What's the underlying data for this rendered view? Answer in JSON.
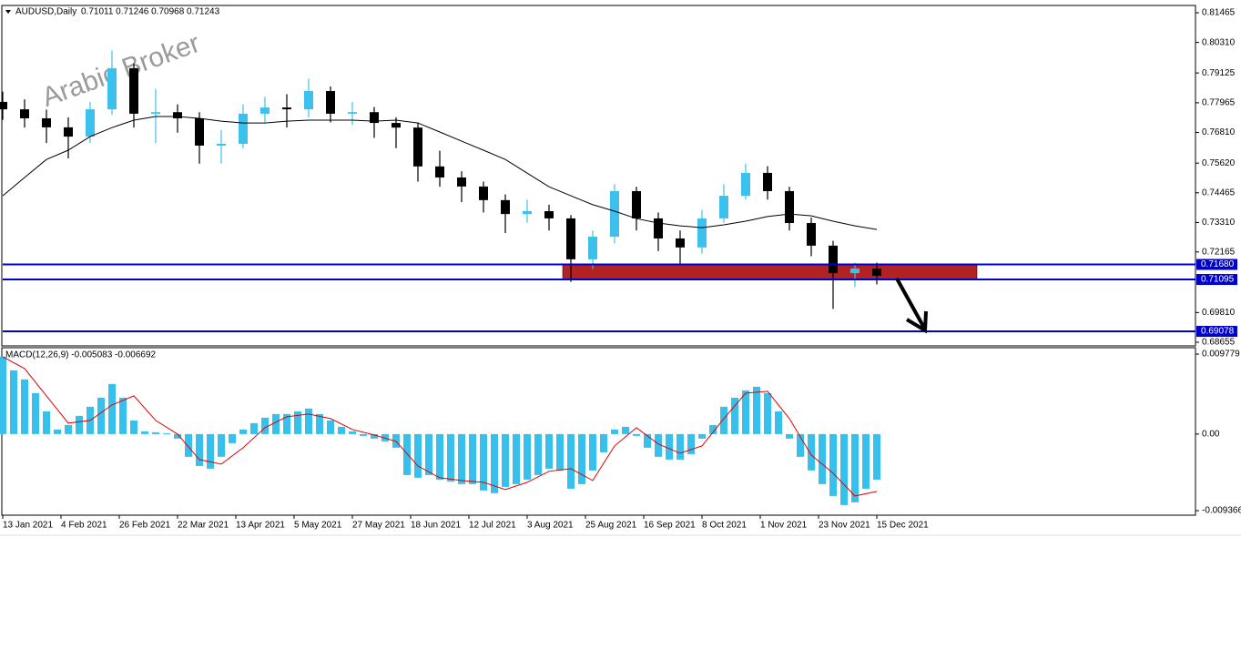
{
  "chart_data": [
    {
      "type": "candlestick",
      "title": "AUDUSD,Daily",
      "ohlc_text": "0.71011 0.71246 0.70968 0.71243",
      "watermark": "Arabic Broker",
      "xlim": [
        0,
        327.5
      ],
      "xticks": [
        {
          "value": 0,
          "label": "13 Jan 2021"
        },
        {
          "value": 16,
          "label": "4 Feb 2021"
        },
        {
          "value": 32,
          "label": "26 Feb 2021"
        },
        {
          "value": 48,
          "label": "22 Mar 2021"
        },
        {
          "value": 64,
          "label": "13 Apr 2021"
        },
        {
          "value": 80,
          "label": "5 May 2021"
        },
        {
          "value": 96,
          "label": "27 May 2021"
        },
        {
          "value": 112,
          "label": "18 Jun 2021"
        },
        {
          "value": 128,
          "label": "12 Jul 2021"
        },
        {
          "value": 144,
          "label": "3 Aug 2021"
        },
        {
          "value": 160,
          "label": "25 Aug 2021"
        },
        {
          "value": 176,
          "label": "16 Sep 2021"
        },
        {
          "value": 192,
          "label": "8 Oct 2021"
        },
        {
          "value": 208,
          "label": "1 Nov 2021"
        },
        {
          "value": 224,
          "label": "23 Nov 2021"
        },
        {
          "value": 240,
          "label": "15 Dec 2021"
        }
      ],
      "ylim": [
        0.68513,
        0.81748
      ],
      "yticks": [
        0.81465,
        {
          "value": 0.8031,
          "label": "0.80310"
        },
        0.79125,
        0.77965,
        {
          "value": 0.7681,
          "label": "0.76810"
        },
        {
          "value": 0.7562,
          "label": "0.75620"
        },
        0.74465,
        {
          "value": 0.7331,
          "label": "0.73310"
        },
        0.72165,
        {
          "value": 0.6981,
          "label": "0.69810"
        },
        0.68655
      ],
      "x": [
        0,
        6,
        12,
        18,
        24,
        30,
        36,
        42,
        48,
        54,
        60,
        66,
        72,
        78,
        84,
        90,
        96,
        102,
        108,
        114,
        120,
        126,
        132,
        138,
        144,
        150,
        156,
        162,
        168,
        174,
        180,
        186,
        192,
        198,
        204,
        210,
        216,
        222,
        228,
        234,
        240
      ],
      "open": [
        0.78,
        0.7771,
        0.7736,
        0.7701,
        0.7665,
        0.7771,
        0.7931,
        0.7754,
        0.776,
        0.7736,
        0.763,
        0.7637,
        0.7754,
        0.7778,
        0.7771,
        0.7842,
        0.7754,
        0.776,
        0.7718,
        0.77,
        0.7549,
        0.7506,
        0.7471,
        0.7418,
        0.7364,
        0.7375,
        0.7347,
        0.7188,
        0.7276,
        0.7453,
        0.7347,
        0.7269,
        0.7234,
        0.7347,
        0.7435,
        0.7524,
        0.7453,
        0.7329,
        0.7241,
        0.7134,
        0.7152
      ],
      "high": [
        0.784,
        0.781,
        0.777,
        0.774,
        0.78,
        0.8,
        0.795,
        0.785,
        0.779,
        0.776,
        0.769,
        0.779,
        0.782,
        0.783,
        0.789,
        0.786,
        0.78,
        0.778,
        0.774,
        0.772,
        0.761,
        0.753,
        0.749,
        0.744,
        0.742,
        0.74,
        0.736,
        0.73,
        0.748,
        0.747,
        0.737,
        0.73,
        0.738,
        0.748,
        0.756,
        0.755,
        0.747,
        0.735,
        0.726,
        0.7175,
        0.7175
      ],
      "low": [
        0.773,
        0.77,
        0.764,
        0.758,
        0.764,
        0.775,
        0.77,
        0.764,
        0.768,
        0.756,
        0.756,
        0.762,
        0.772,
        0.77,
        0.774,
        0.772,
        0.771,
        0.766,
        0.762,
        0.749,
        0.747,
        0.741,
        0.737,
        0.729,
        0.733,
        0.73,
        0.71,
        0.715,
        0.725,
        0.73,
        0.722,
        0.717,
        0.721,
        0.733,
        0.742,
        0.742,
        0.73,
        0.72,
        0.6995,
        0.708,
        0.709
      ],
      "close": [
        0.7771,
        0.7736,
        0.7701,
        0.7665,
        0.7771,
        0.7931,
        0.7754,
        0.776,
        0.7736,
        0.763,
        0.7637,
        0.7754,
        0.7778,
        0.7771,
        0.7842,
        0.7754,
        0.776,
        0.7718,
        0.77,
        0.7549,
        0.7506,
        0.7471,
        0.7418,
        0.7364,
        0.7375,
        0.7347,
        0.7188,
        0.7276,
        0.7453,
        0.7347,
        0.7269,
        0.7234,
        0.7347,
        0.7435,
        0.7524,
        0.7453,
        0.7329,
        0.7241,
        0.7134,
        0.7152,
        0.7124
      ],
      "up_color": "#3cc0ec",
      "down_color": "#000000",
      "ma": [
        0.7435,
        0.7506,
        0.7576,
        0.7612,
        0.7665,
        0.77,
        0.7729,
        0.7743,
        0.7743,
        0.7736,
        0.7725,
        0.7718,
        0.7718,
        0.7725,
        0.7729,
        0.7729,
        0.7729,
        0.7725,
        0.7729,
        0.7718,
        0.7683,
        0.7647,
        0.7612,
        0.7576,
        0.7523,
        0.747,
        0.7435,
        0.74,
        0.7375,
        0.7346,
        0.7329,
        0.7318,
        0.7311,
        0.7322,
        0.7336,
        0.7354,
        0.7364,
        0.7357,
        0.7336,
        0.7318,
        0.7304
      ],
      "ma_color": "#000000",
      "levels": [
        {
          "value": 0.7168,
          "label": "0.71680"
        },
        {
          "value": 0.71095,
          "label": "0.71095"
        },
        {
          "value": 0.69078,
          "label": "0.69078"
        }
      ],
      "level_color": "#0000cc",
      "zone": {
        "xlim": [
          153.75,
          267.5
        ],
        "ylim": [
          0.711,
          0.7168
        ],
        "color": "#b22222"
      }
    },
    {
      "type": "macd",
      "title": "MACD(12,26,9) -0.005083 -0.006692",
      "ylim": [
        -0.00992,
        0.01045
      ],
      "yticks": [
        0.009779,
        {
          "value": 0,
          "label": "0.00"
        },
        -0.009366
      ],
      "x": [
        0,
        3,
        6,
        9,
        12,
        15,
        18,
        21,
        24,
        27,
        30,
        33,
        36,
        39,
        42,
        45,
        48,
        51,
        54,
        57,
        60,
        63,
        66,
        69,
        72,
        75,
        78,
        81,
        84,
        87,
        90,
        93,
        96,
        99,
        102,
        105,
        108,
        111,
        114,
        117,
        120,
        123,
        126,
        129,
        132,
        135,
        138,
        141,
        144,
        147,
        150,
        153,
        156,
        159,
        162,
        165,
        168,
        171,
        174,
        177,
        180,
        183,
        186,
        189,
        192,
        195,
        198,
        201,
        204,
        207,
        210,
        213,
        216,
        219,
        222,
        225,
        228,
        231,
        234,
        237,
        240
      ],
      "histogram": [
        0.00946,
        0.00779,
        0.00668,
        0.00501,
        0.00278,
        0.00056,
        0.00111,
        0.00223,
        0.00334,
        0.00445,
        0.00612,
        0.00445,
        0.00167,
        0.00033,
        0.00022,
        0.00011,
        -0.00056,
        -0.00278,
        -0.0039,
        -0.00423,
        -0.00278,
        -0.00111,
        0.00056,
        0.00134,
        0.002,
        0.00245,
        0.00245,
        0.00278,
        0.00312,
        0.00245,
        0.00167,
        0.00089,
        0.00033,
        -0.00022,
        -0.00056,
        -0.00089,
        -0.00167,
        -0.00501,
        -0.00534,
        -0.00501,
        -0.00557,
        -0.00579,
        -0.00612,
        -0.00612,
        -0.0069,
        -0.00723,
        -0.00646,
        -0.00612,
        -0.00557,
        -0.00501,
        -0.00423,
        -0.00445,
        -0.00668,
        -0.00612,
        -0.00445,
        -0.00223,
        0.00056,
        0.00089,
        -0.00022,
        -0.00167,
        -0.00278,
        -0.00312,
        -0.00312,
        -0.00245,
        -0.00056,
        0.00111,
        0.00334,
        0.00445,
        0.00534,
        0.00579,
        0.00501,
        0.00278,
        -0.00056,
        -0.00278,
        -0.00445,
        -0.00612,
        -0.00757,
        -0.00868,
        -0.00835,
        -0.00668,
        -0.00557
      ],
      "histogram_color": "#38c0ec",
      "signal_x": [
        0,
        6,
        12,
        18,
        24,
        30,
        36,
        42,
        48,
        54,
        60,
        66,
        72,
        78,
        84,
        90,
        96,
        102,
        108,
        114,
        120,
        126,
        132,
        138,
        144,
        150,
        156,
        162,
        168,
        174,
        180,
        186,
        192,
        198,
        204,
        210,
        216,
        222,
        228,
        234,
        240
      ],
      "signal": [
        0.00946,
        0.00801,
        0.00467,
        0.00134,
        0.00167,
        0.00356,
        0.00467,
        0.00167,
        0,
        -0.00312,
        -0.00367,
        -0.00167,
        0.00078,
        0.00211,
        0.00245,
        0.00189,
        0.00056,
        -0.00011,
        -0.00089,
        -0.0039,
        -0.00534,
        -0.00568,
        -0.0059,
        -0.00679,
        -0.0059,
        -0.00456,
        -0.00423,
        -0.00568,
        -0.00145,
        0.00078,
        -0.00122,
        -0.00234,
        -0.00145,
        0.00189,
        0.00501,
        0.00523,
        0.00189,
        -0.00256,
        -0.00479,
        -0.00757,
        -0.00701
      ],
      "signal_color": "#e00000"
    }
  ]
}
